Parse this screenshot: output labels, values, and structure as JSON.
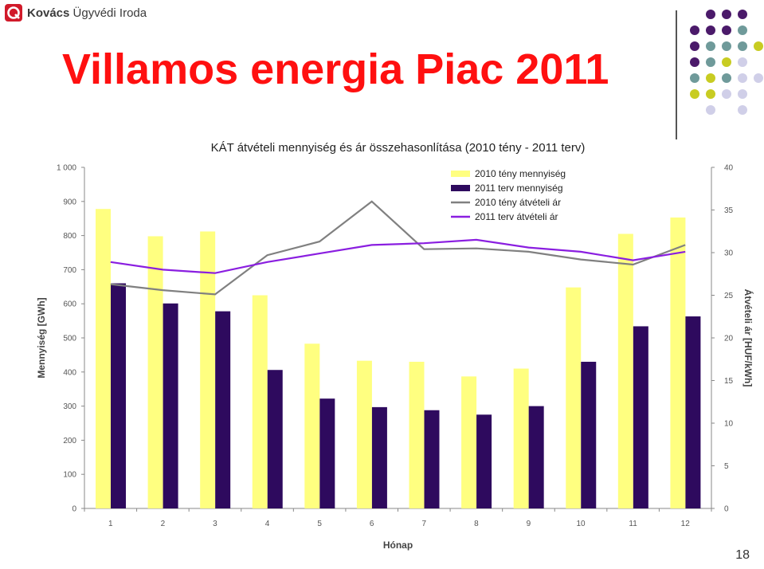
{
  "header": {
    "logo_bold": "Kovács",
    "logo_rest": " Ügyvédi Iroda",
    "title": "Villamos energia Piac 2011"
  },
  "decor": {
    "dots_colors": {
      "purple": "#4b1a6a",
      "teal": "#6f9a9a",
      "lime": "#c8cc22",
      "lavender": "#d0cfe8"
    }
  },
  "chart_data": {
    "type": "bar",
    "title": "KÁT átvételi mennyiség és ár összehasonlítása (2010 tény - 2011 terv)",
    "xlabel": "Hónap",
    "ylabel": "Mennyiség [GWh]",
    "y2label": "Átvételi ár [HUF/kWh]",
    "categories": [
      "1",
      "2",
      "3",
      "4",
      "5",
      "6",
      "7",
      "8",
      "9",
      "10",
      "11",
      "12"
    ],
    "ylim": [
      0,
      1000
    ],
    "y2lim": [
      0,
      40
    ],
    "yticks": [
      "0",
      "100",
      "200",
      "300",
      "400",
      "500",
      "600",
      "700",
      "800",
      "900",
      "1 000"
    ],
    "y2ticks": [
      "0",
      "5",
      "10",
      "15",
      "20",
      "25",
      "30",
      "35",
      "40"
    ],
    "grid": false,
    "legend_position": "top-right",
    "series": [
      {
        "name": "2010 tény mennyiség",
        "type": "bar",
        "axis": "left",
        "color": "#ffff80",
        "values": [
          878,
          798,
          812,
          625,
          483,
          433,
          430,
          387,
          410,
          648,
          805,
          853
        ]
      },
      {
        "name": "2011 terv mennyiség",
        "type": "bar",
        "axis": "left",
        "color": "#2e0a5e",
        "values": [
          660,
          601,
          578,
          406,
          322,
          297,
          288,
          275,
          300,
          430,
          534,
          563
        ]
      },
      {
        "name": "2010 tény átvételi ár",
        "type": "line",
        "axis": "right",
        "color": "#808080",
        "values": [
          26.3,
          25.6,
          25.1,
          29.7,
          31.3,
          36.0,
          30.4,
          30.5,
          30.1,
          29.2,
          28.6,
          30.9
        ]
      },
      {
        "name": "2011 terv átvételi ár",
        "type": "line",
        "axis": "right",
        "color": "#8a1ee0",
        "values": [
          28.9,
          28.0,
          27.6,
          28.9,
          29.9,
          30.9,
          31.1,
          31.5,
          30.6,
          30.1,
          29.1,
          30.1
        ]
      }
    ]
  },
  "footer": {
    "page_number": "18"
  }
}
